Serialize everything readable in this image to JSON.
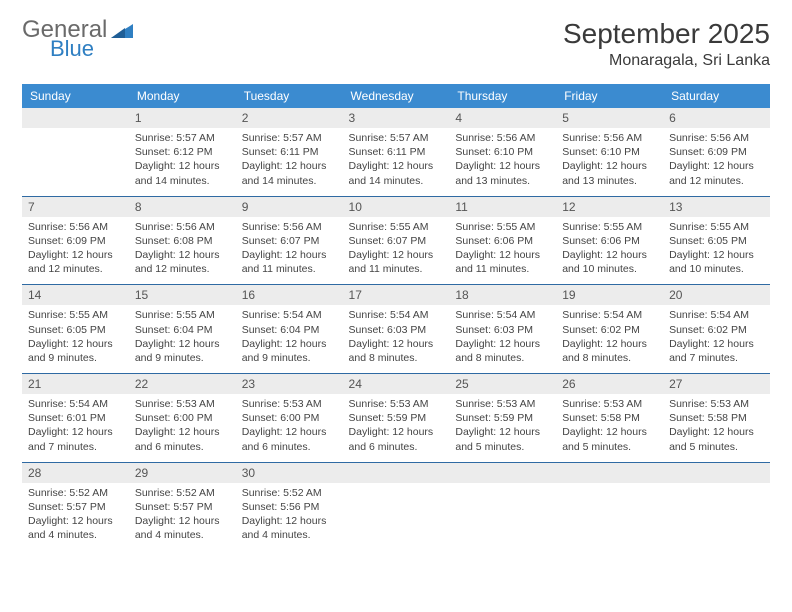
{
  "brand": {
    "word1": "General",
    "word2": "Blue"
  },
  "title": "September 2025",
  "location": "Monaragala, Sri Lanka",
  "colors": {
    "header_bg": "#3b8bd0",
    "header_text": "#ffffff",
    "daynum_bg": "#ececec",
    "row_border": "#2f6aa3",
    "logo_gray": "#6a6a6a",
    "logo_blue": "#2f7fc2"
  },
  "weekdays": [
    "Sunday",
    "Monday",
    "Tuesday",
    "Wednesday",
    "Thursday",
    "Friday",
    "Saturday"
  ],
  "weeks": [
    [
      {
        "n": "",
        "lines": []
      },
      {
        "n": "1",
        "lines": [
          "Sunrise: 5:57 AM",
          "Sunset: 6:12 PM",
          "Daylight: 12 hours and 14 minutes."
        ]
      },
      {
        "n": "2",
        "lines": [
          "Sunrise: 5:57 AM",
          "Sunset: 6:11 PM",
          "Daylight: 12 hours and 14 minutes."
        ]
      },
      {
        "n": "3",
        "lines": [
          "Sunrise: 5:57 AM",
          "Sunset: 6:11 PM",
          "Daylight: 12 hours and 14 minutes."
        ]
      },
      {
        "n": "4",
        "lines": [
          "Sunrise: 5:56 AM",
          "Sunset: 6:10 PM",
          "Daylight: 12 hours and 13 minutes."
        ]
      },
      {
        "n": "5",
        "lines": [
          "Sunrise: 5:56 AM",
          "Sunset: 6:10 PM",
          "Daylight: 12 hours and 13 minutes."
        ]
      },
      {
        "n": "6",
        "lines": [
          "Sunrise: 5:56 AM",
          "Sunset: 6:09 PM",
          "Daylight: 12 hours and 12 minutes."
        ]
      }
    ],
    [
      {
        "n": "7",
        "lines": [
          "Sunrise: 5:56 AM",
          "Sunset: 6:09 PM",
          "Daylight: 12 hours and 12 minutes."
        ]
      },
      {
        "n": "8",
        "lines": [
          "Sunrise: 5:56 AM",
          "Sunset: 6:08 PM",
          "Daylight: 12 hours and 12 minutes."
        ]
      },
      {
        "n": "9",
        "lines": [
          "Sunrise: 5:56 AM",
          "Sunset: 6:07 PM",
          "Daylight: 12 hours and 11 minutes."
        ]
      },
      {
        "n": "10",
        "lines": [
          "Sunrise: 5:55 AM",
          "Sunset: 6:07 PM",
          "Daylight: 12 hours and 11 minutes."
        ]
      },
      {
        "n": "11",
        "lines": [
          "Sunrise: 5:55 AM",
          "Sunset: 6:06 PM",
          "Daylight: 12 hours and 11 minutes."
        ]
      },
      {
        "n": "12",
        "lines": [
          "Sunrise: 5:55 AM",
          "Sunset: 6:06 PM",
          "Daylight: 12 hours and 10 minutes."
        ]
      },
      {
        "n": "13",
        "lines": [
          "Sunrise: 5:55 AM",
          "Sunset: 6:05 PM",
          "Daylight: 12 hours and 10 minutes."
        ]
      }
    ],
    [
      {
        "n": "14",
        "lines": [
          "Sunrise: 5:55 AM",
          "Sunset: 6:05 PM",
          "Daylight: 12 hours and 9 minutes."
        ]
      },
      {
        "n": "15",
        "lines": [
          "Sunrise: 5:55 AM",
          "Sunset: 6:04 PM",
          "Daylight: 12 hours and 9 minutes."
        ]
      },
      {
        "n": "16",
        "lines": [
          "Sunrise: 5:54 AM",
          "Sunset: 6:04 PM",
          "Daylight: 12 hours and 9 minutes."
        ]
      },
      {
        "n": "17",
        "lines": [
          "Sunrise: 5:54 AM",
          "Sunset: 6:03 PM",
          "Daylight: 12 hours and 8 minutes."
        ]
      },
      {
        "n": "18",
        "lines": [
          "Sunrise: 5:54 AM",
          "Sunset: 6:03 PM",
          "Daylight: 12 hours and 8 minutes."
        ]
      },
      {
        "n": "19",
        "lines": [
          "Sunrise: 5:54 AM",
          "Sunset: 6:02 PM",
          "Daylight: 12 hours and 8 minutes."
        ]
      },
      {
        "n": "20",
        "lines": [
          "Sunrise: 5:54 AM",
          "Sunset: 6:02 PM",
          "Daylight: 12 hours and 7 minutes."
        ]
      }
    ],
    [
      {
        "n": "21",
        "lines": [
          "Sunrise: 5:54 AM",
          "Sunset: 6:01 PM",
          "Daylight: 12 hours and 7 minutes."
        ]
      },
      {
        "n": "22",
        "lines": [
          "Sunrise: 5:53 AM",
          "Sunset: 6:00 PM",
          "Daylight: 12 hours and 6 minutes."
        ]
      },
      {
        "n": "23",
        "lines": [
          "Sunrise: 5:53 AM",
          "Sunset: 6:00 PM",
          "Daylight: 12 hours and 6 minutes."
        ]
      },
      {
        "n": "24",
        "lines": [
          "Sunrise: 5:53 AM",
          "Sunset: 5:59 PM",
          "Daylight: 12 hours and 6 minutes."
        ]
      },
      {
        "n": "25",
        "lines": [
          "Sunrise: 5:53 AM",
          "Sunset: 5:59 PM",
          "Daylight: 12 hours and 5 minutes."
        ]
      },
      {
        "n": "26",
        "lines": [
          "Sunrise: 5:53 AM",
          "Sunset: 5:58 PM",
          "Daylight: 12 hours and 5 minutes."
        ]
      },
      {
        "n": "27",
        "lines": [
          "Sunrise: 5:53 AM",
          "Sunset: 5:58 PM",
          "Daylight: 12 hours and 5 minutes."
        ]
      }
    ],
    [
      {
        "n": "28",
        "lines": [
          "Sunrise: 5:52 AM",
          "Sunset: 5:57 PM",
          "Daylight: 12 hours and 4 minutes."
        ]
      },
      {
        "n": "29",
        "lines": [
          "Sunrise: 5:52 AM",
          "Sunset: 5:57 PM",
          "Daylight: 12 hours and 4 minutes."
        ]
      },
      {
        "n": "30",
        "lines": [
          "Sunrise: 5:52 AM",
          "Sunset: 5:56 PM",
          "Daylight: 12 hours and 4 minutes."
        ]
      },
      {
        "n": "",
        "lines": []
      },
      {
        "n": "",
        "lines": []
      },
      {
        "n": "",
        "lines": []
      },
      {
        "n": "",
        "lines": []
      }
    ]
  ]
}
